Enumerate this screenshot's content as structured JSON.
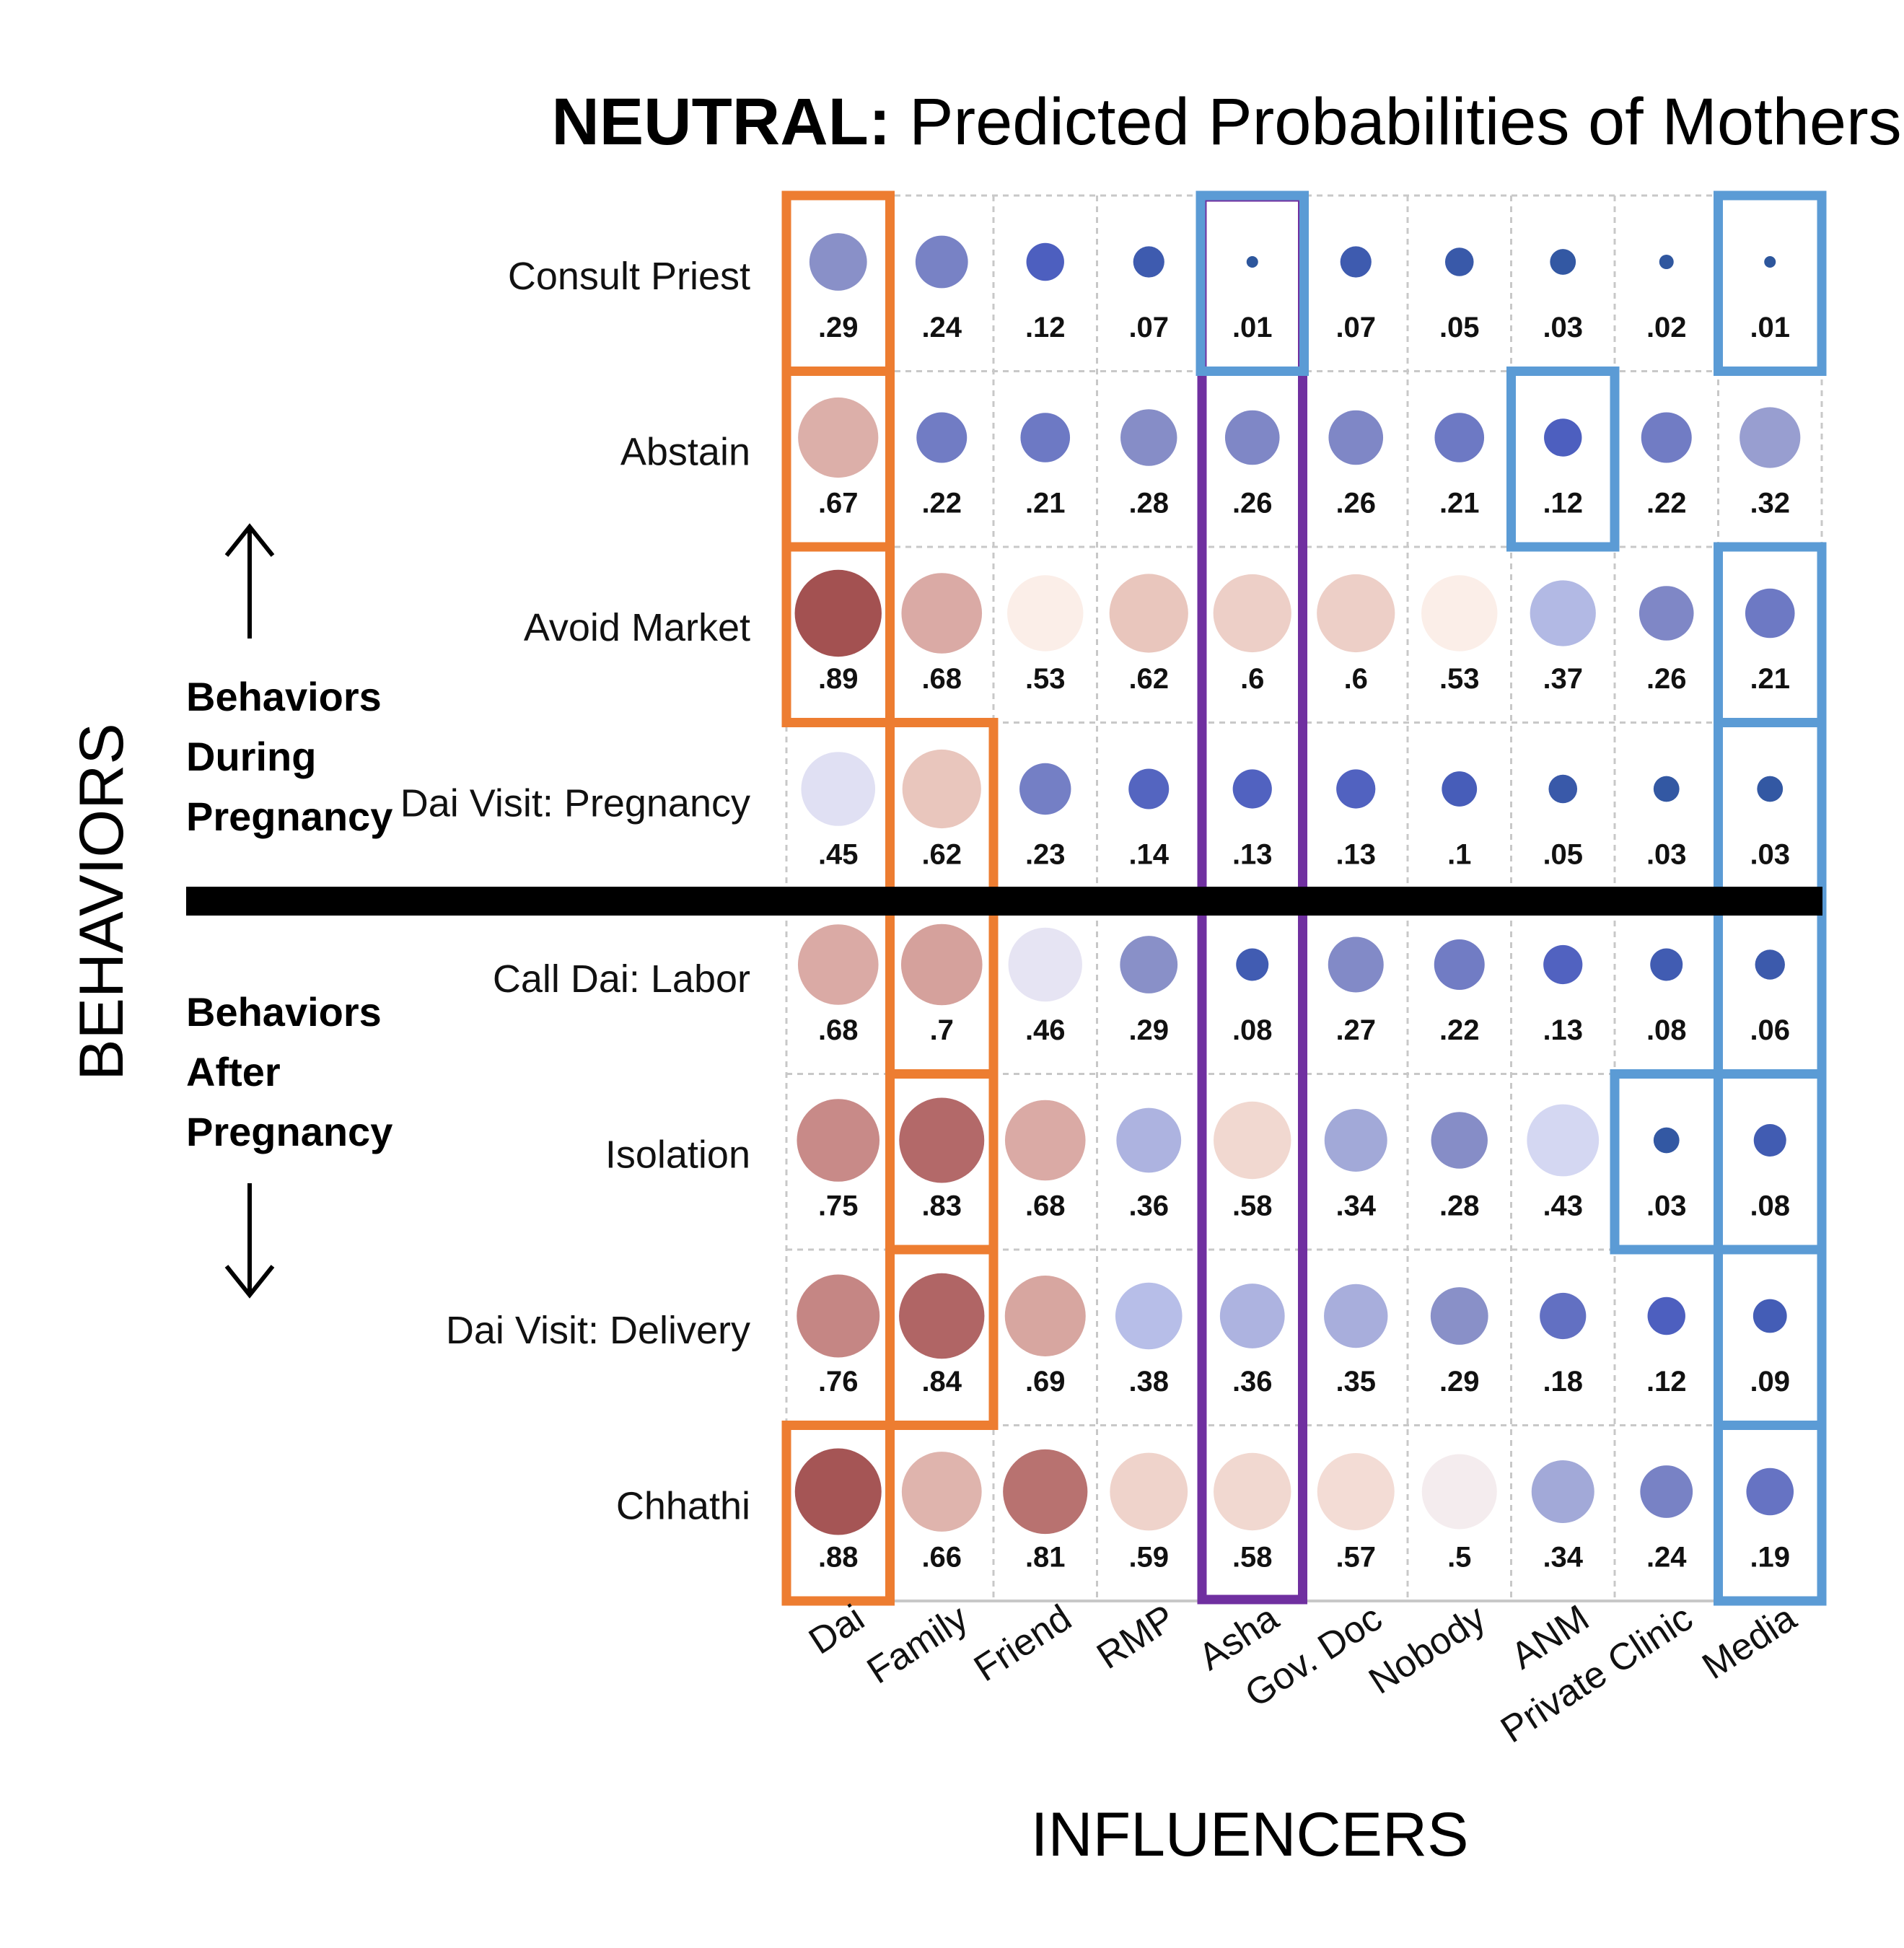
{
  "title": {
    "bold": "NEUTRAL:",
    "rest": " Predicted Probabilities of Mothers"
  },
  "y_axis_title": "BEHAVIORS",
  "x_axis_title": "INFLUENCERS",
  "group_during": [
    "Behaviors",
    "During",
    "Pregnancy"
  ],
  "group_after": [
    "Behaviors",
    "After",
    "Pregnancy"
  ],
  "colors": {
    "highlight_dai_family": "#ed7d31",
    "highlight_asha": "#7030a0",
    "highlight_low": "#5b9bd5",
    "divider": "#000000",
    "grid": "#c8c8c8"
  },
  "chart_data": {
    "type": "bubble-matrix",
    "title": "NEUTRAL: Predicted Probabilities of Mothers",
    "xlabel": "INFLUENCERS",
    "ylabel": "BEHAVIORS",
    "columns": [
      "Dai",
      "Family",
      "Friend",
      "RMP",
      "Asha",
      "Gov. Doc",
      "Nobody",
      "ANM",
      "Private Clinic",
      "Media"
    ],
    "rows": [
      "Consult Priest",
      "Abstain",
      "Avoid Market",
      "Dai Visit: Pregnancy",
      "Call Dai: Labor",
      "Isolation",
      "Dai Visit: Delivery",
      "Chhathi"
    ],
    "row_groups": [
      {
        "name": "Behaviors During Pregnancy",
        "rows": [
          "Consult Priest",
          "Abstain",
          "Avoid Market",
          "Dai Visit: Pregnancy"
        ]
      },
      {
        "name": "Behaviors After Pregnancy",
        "rows": [
          "Call Dai: Labor",
          "Isolation",
          "Dai Visit: Delivery",
          "Chhathi"
        ]
      }
    ],
    "values": [
      [
        0.29,
        0.24,
        0.12,
        0.07,
        0.01,
        0.07,
        0.05,
        0.03,
        0.02,
        0.01
      ],
      [
        0.67,
        0.22,
        0.21,
        0.28,
        0.26,
        0.26,
        0.21,
        0.12,
        0.22,
        0.32
      ],
      [
        0.89,
        0.68,
        0.53,
        0.62,
        0.6,
        0.6,
        0.53,
        0.37,
        0.26,
        0.21
      ],
      [
        0.45,
        0.62,
        0.23,
        0.14,
        0.13,
        0.13,
        0.1,
        0.05,
        0.03,
        0.03
      ],
      [
        0.68,
        0.7,
        0.46,
        0.29,
        0.08,
        0.27,
        0.22,
        0.13,
        0.08,
        0.06
      ],
      [
        0.75,
        0.83,
        0.68,
        0.36,
        0.58,
        0.34,
        0.28,
        0.43,
        0.03,
        0.08
      ],
      [
        0.76,
        0.84,
        0.69,
        0.38,
        0.36,
        0.35,
        0.29,
        0.18,
        0.12,
        0.09
      ],
      [
        0.88,
        0.66,
        0.81,
        0.59,
        0.58,
        0.57,
        0.5,
        0.34,
        0.24,
        0.19
      ]
    ],
    "labels": [
      [
        ".29",
        ".24",
        ".12",
        ".07",
        ".01",
        ".07",
        ".05",
        ".03",
        ".02",
        ".01"
      ],
      [
        ".67",
        ".22",
        ".21",
        ".28",
        ".26",
        ".26",
        ".21",
        ".12",
        ".22",
        ".32"
      ],
      [
        ".89",
        ".68",
        ".53",
        ".62",
        ".6",
        ".6",
        ".53",
        ".37",
        ".26",
        ".21"
      ],
      [
        ".45",
        ".62",
        ".23",
        ".14",
        ".13",
        ".13",
        ".1",
        ".05",
        ".03",
        ".03"
      ],
      [
        ".68",
        ".7",
        ".46",
        ".29",
        ".08",
        ".27",
        ".22",
        ".13",
        ".08",
        ".06"
      ],
      [
        ".75",
        ".83",
        ".68",
        ".36",
        ".58",
        ".34",
        ".28",
        ".43",
        ".03",
        ".08"
      ],
      [
        ".76",
        ".84",
        ".69",
        ".38",
        ".36",
        ".35",
        ".29",
        ".18",
        ".12",
        ".09"
      ],
      [
        ".88",
        ".66",
        ".81",
        ".59",
        ".58",
        ".57",
        ".5",
        ".34",
        ".24",
        ".19"
      ]
    ],
    "highlights": [
      {
        "color": "orange",
        "column": "Dai",
        "rows": [
          "Consult Priest"
        ]
      },
      {
        "color": "orange",
        "column": "Dai",
        "rows": [
          "Abstain"
        ]
      },
      {
        "color": "orange",
        "column": "Dai",
        "rows": [
          "Avoid Market"
        ]
      },
      {
        "color": "orange",
        "column": "Family",
        "rows": [
          "Dai Visit: Pregnancy",
          "Call Dai: Labor"
        ]
      },
      {
        "color": "orange",
        "column": "Family",
        "rows": [
          "Isolation"
        ]
      },
      {
        "color": "orange",
        "column": "Family",
        "rows": [
          "Dai Visit: Delivery"
        ]
      },
      {
        "color": "orange",
        "column": "Dai",
        "rows": [
          "Chhathi"
        ]
      },
      {
        "color": "purple",
        "column": "Asha",
        "rows": [
          "Consult Priest",
          "Abstain",
          "Avoid Market",
          "Dai Visit: Pregnancy",
          "Call Dai: Labor",
          "Isolation",
          "Dai Visit: Delivery",
          "Chhathi"
        ]
      },
      {
        "color": "blue",
        "column": "Asha",
        "rows": [
          "Consult Priest"
        ]
      },
      {
        "color": "blue",
        "column": "Media",
        "rows": [
          "Consult Priest"
        ]
      },
      {
        "color": "blue",
        "column": "ANM",
        "rows": [
          "Abstain"
        ]
      },
      {
        "color": "blue",
        "column": "Media",
        "rows": [
          "Avoid Market"
        ]
      },
      {
        "color": "blue",
        "column": "Media",
        "rows": [
          "Dai Visit: Pregnancy",
          "Call Dai: Labor"
        ]
      },
      {
        "color": "blue",
        "column": "Private Clinic",
        "rows": [
          "Isolation"
        ]
      },
      {
        "color": "blue",
        "column": "Media",
        "rows": [
          "Isolation"
        ]
      },
      {
        "color": "blue",
        "column": "Media",
        "rows": [
          "Dai Visit: Delivery"
        ]
      },
      {
        "color": "blue",
        "column": "Media",
        "rows": [
          "Chhathi"
        ]
      }
    ]
  }
}
